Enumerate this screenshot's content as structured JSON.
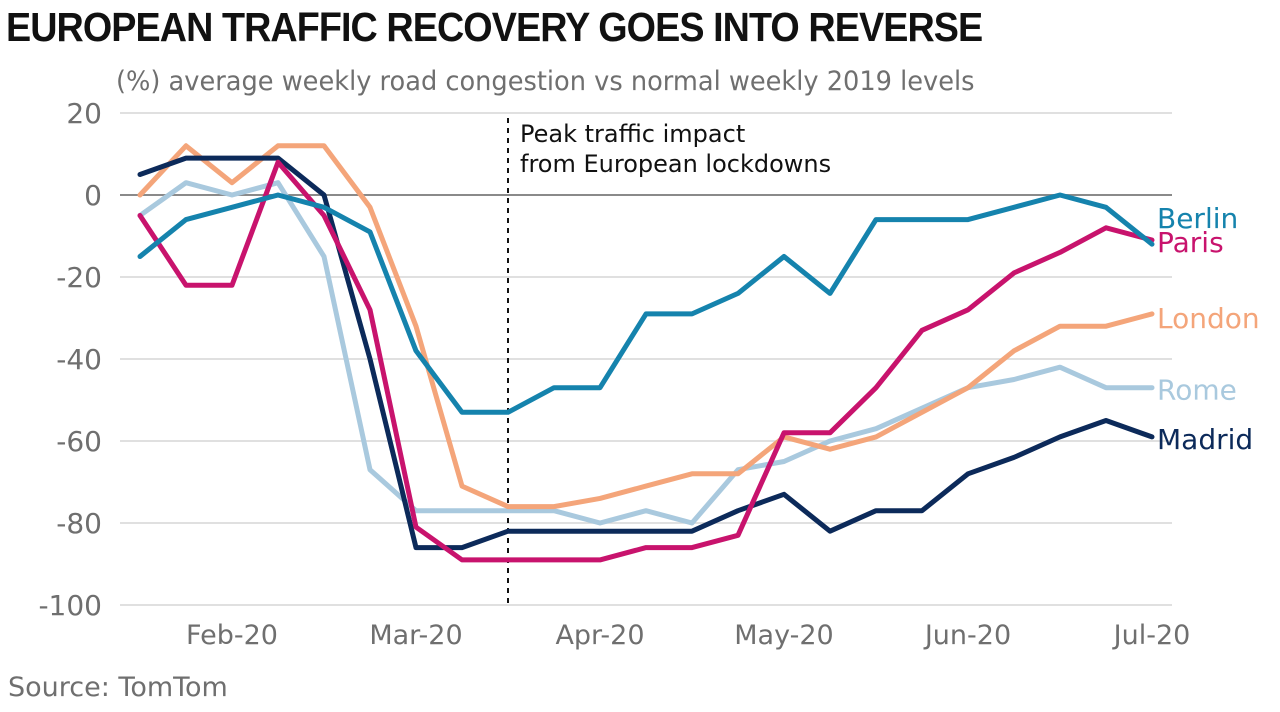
{
  "chart_data": {
    "type": "line",
    "title": "EUROPEAN TRAFFIC RECOVERY GOES INTO REVERSE",
    "subtitle": "(%) average weekly road congestion vs normal weekly 2019 levels",
    "source": "Source: TomTom",
    "ylim": [
      -100,
      20
    ],
    "yticks": [
      20,
      0,
      -20,
      -40,
      -60,
      -80,
      -100
    ],
    "ytick_labels": [
      "20",
      "0",
      "-20",
      "-40",
      "-60",
      "-80",
      "-100"
    ],
    "xtick_labels": [
      "Feb-20",
      "Mar-20",
      "Apr-20",
      "May-20",
      "Jun-20",
      "Jul-20"
    ],
    "xtick_positions": [
      2,
      6,
      10,
      14,
      18,
      22
    ],
    "weeks": 23,
    "grid": true,
    "annotation": {
      "lines": [
        "Peak traffic impact",
        "from European lockdowns"
      ],
      "x": 8
    },
    "series": [
      {
        "name": "Rome",
        "color": "#a9c9de",
        "values": [
          -5,
          3,
          0,
          3,
          -15,
          -67,
          -77,
          -77,
          -77,
          -77,
          -80,
          -77,
          -80,
          -67,
          -65,
          -60,
          -57,
          -52,
          -47,
          -45,
          -42,
          -47,
          -47
        ]
      },
      {
        "name": "London",
        "color": "#f4a57a",
        "values": [
          0,
          12,
          3,
          12,
          12,
          -3,
          -32,
          -71,
          -76,
          -76,
          -74,
          -71,
          -68,
          -68,
          -59,
          -62,
          -59,
          -53,
          -47,
          -38,
          -32,
          -32,
          -29
        ]
      },
      {
        "name": "Madrid",
        "color": "#0c2a5a",
        "values": [
          5,
          9,
          9,
          9,
          0,
          -40,
          -86,
          -86,
          -82,
          -82,
          -82,
          -82,
          -82,
          -77,
          -73,
          -82,
          -77,
          -77,
          -68,
          -64,
          -59,
          -55,
          -59
        ]
      },
      {
        "name": "Paris",
        "color": "#c8136d",
        "values": [
          -5,
          -22,
          -22,
          8,
          -5,
          -28,
          -81,
          -89,
          -89,
          -89,
          -89,
          -86,
          -86,
          -83,
          -58,
          -58,
          -47,
          -33,
          -28,
          -19,
          -14,
          -8,
          -11
        ]
      },
      {
        "name": "Berlin",
        "color": "#1583ad",
        "values": [
          -15,
          -6,
          -3,
          0,
          -3,
          -9,
          -38,
          -53,
          -53,
          -47,
          -47,
          -29,
          -29,
          -24,
          -15,
          -24,
          -6,
          -6,
          -6,
          -3,
          0,
          -3,
          -12
        ]
      }
    ]
  }
}
